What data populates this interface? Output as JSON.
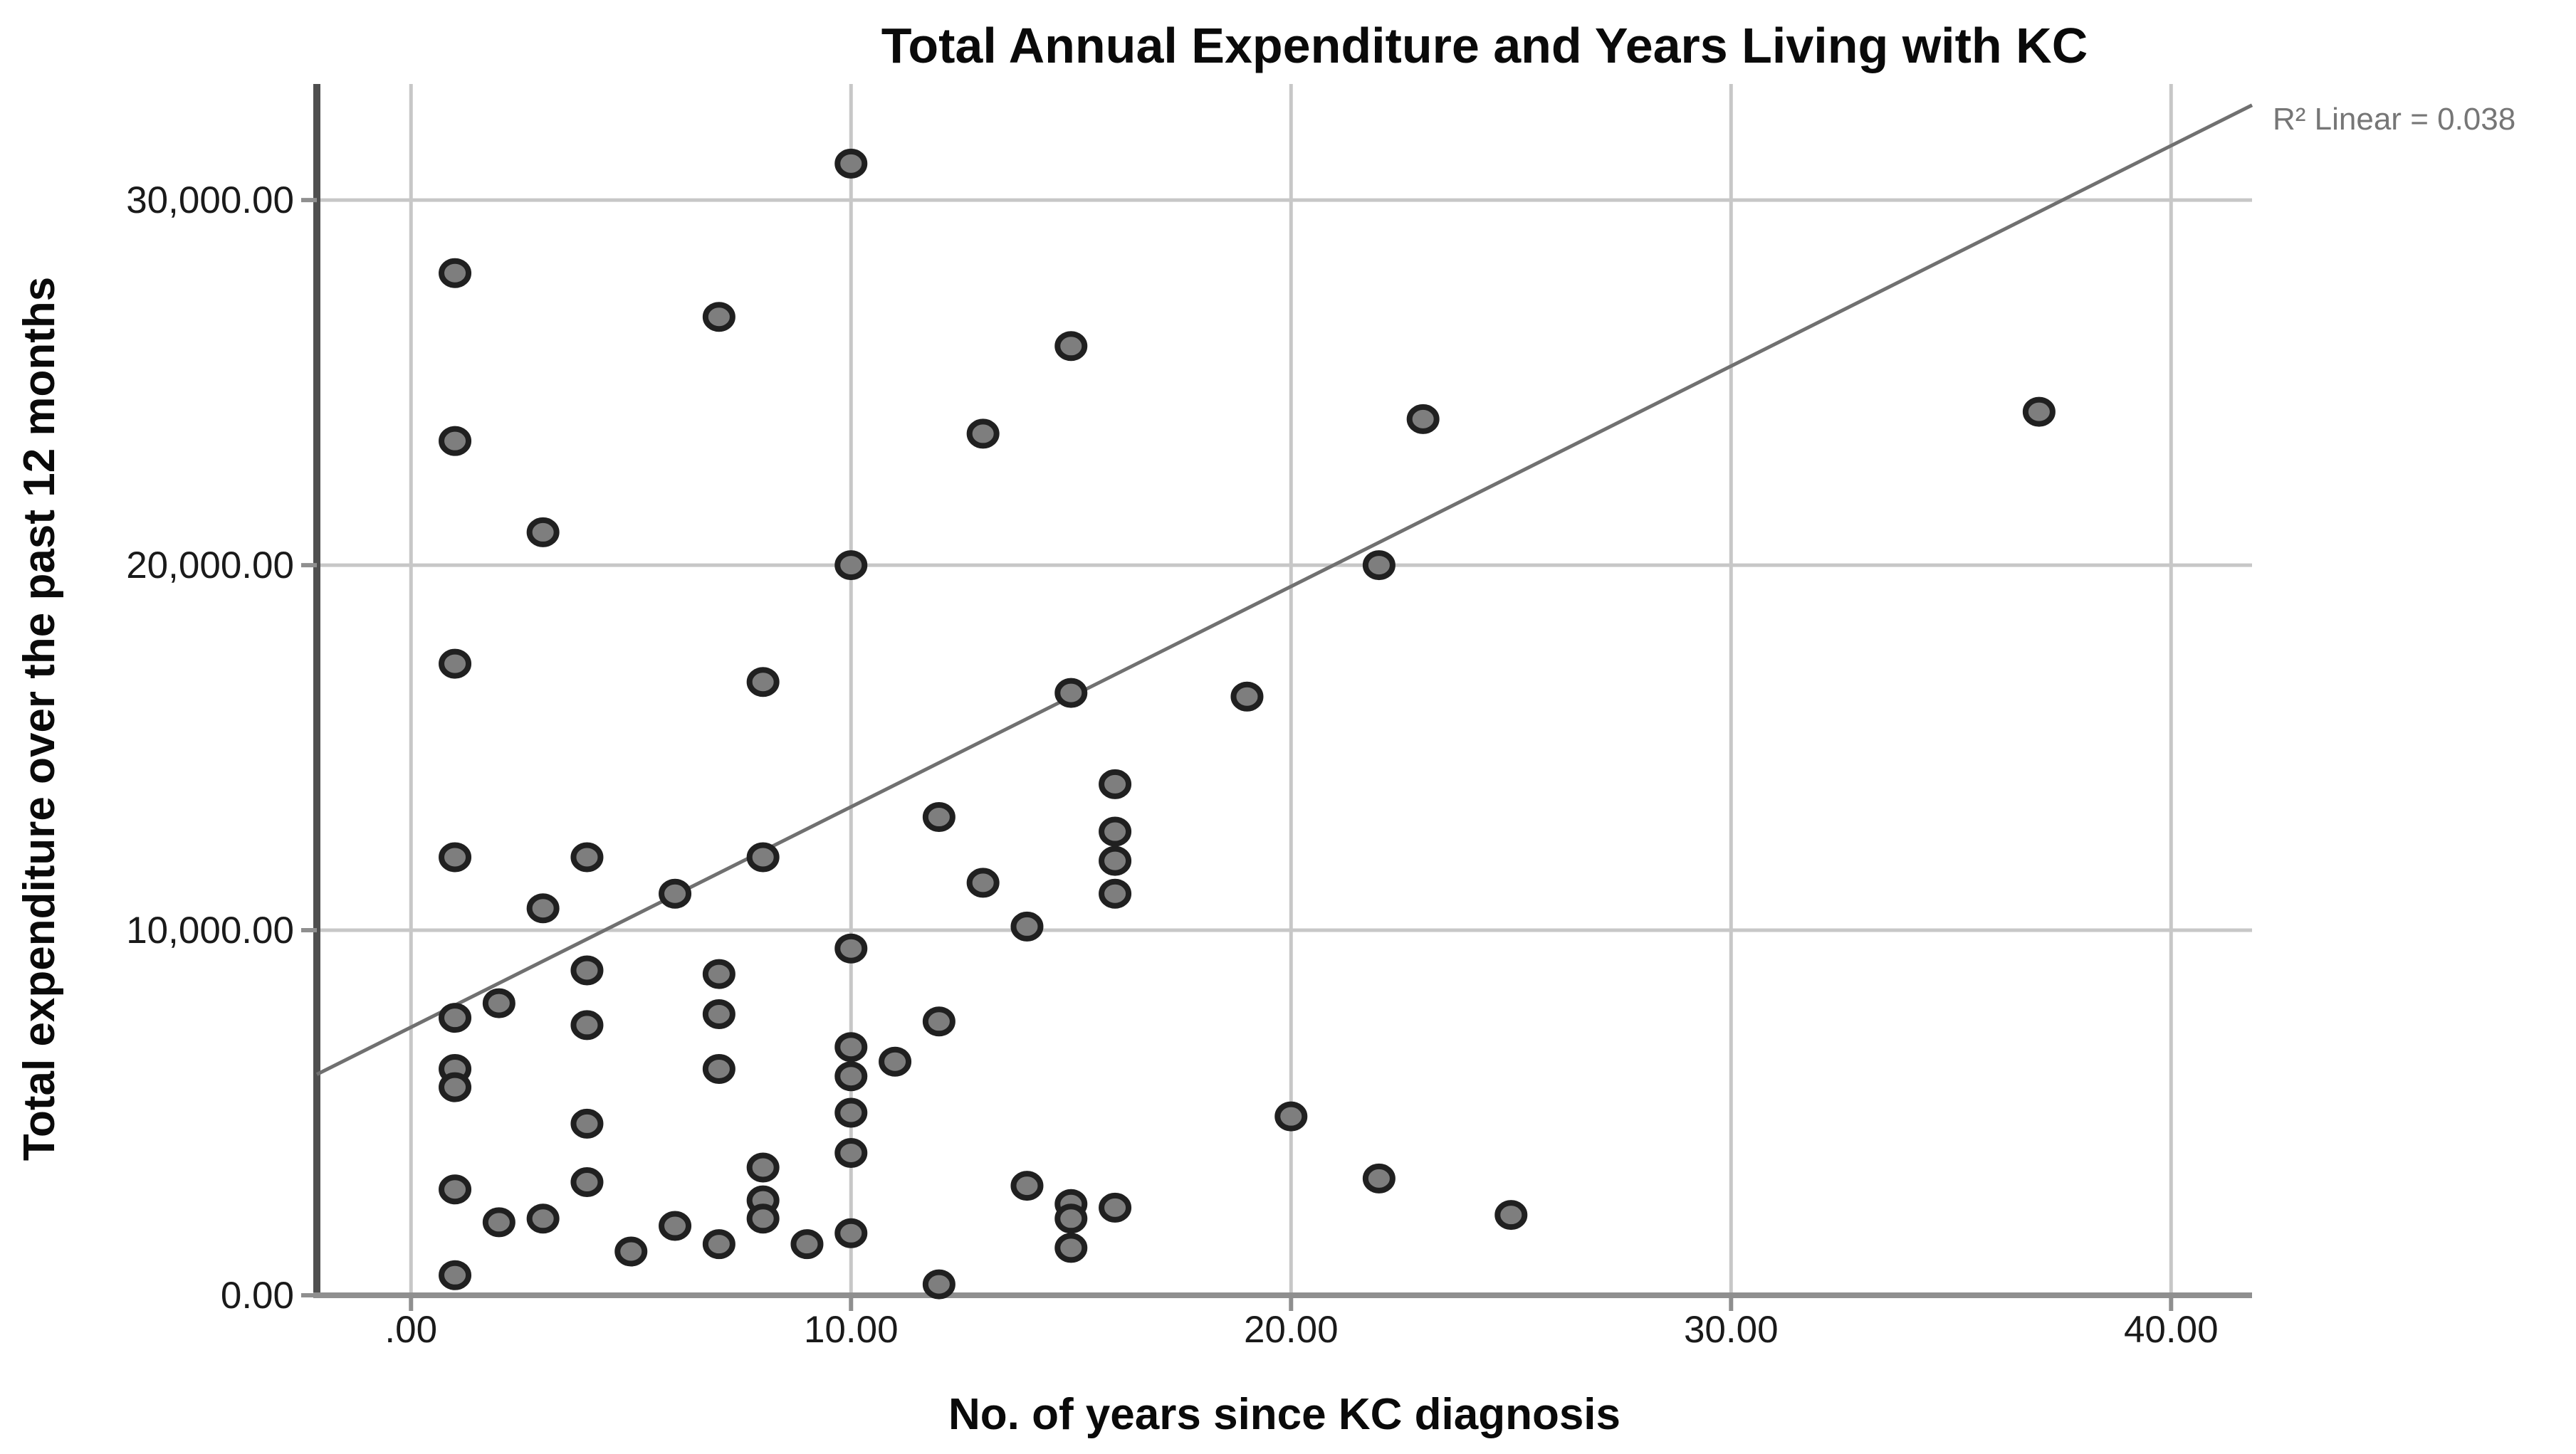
{
  "chart_data": {
    "type": "scatter",
    "title": "Total Annual Expenditure and Years Living with KC",
    "xlabel": "No. of years since KC diagnosis",
    "ylabel": "Total expenditure over the past 12 months",
    "annotation": "R² Linear = 0.038",
    "r2_linear": 0.038,
    "xlim": [
      -2.14,
      41.84
    ],
    "ylim": [
      0,
      33180
    ],
    "grid": true,
    "legend": "none",
    "x_ticks": [
      {
        "value": 0,
        "label": ".00"
      },
      {
        "value": 10,
        "label": "10.00"
      },
      {
        "value": 20,
        "label": "20.00"
      },
      {
        "value": 30,
        "label": "30.00"
      },
      {
        "value": 40,
        "label": "40.00"
      }
    ],
    "y_ticks": [
      {
        "value": 0,
        "label": "0.00"
      },
      {
        "value": 10000,
        "label": "10,000.00"
      },
      {
        "value": 20000,
        "label": "20,000.00"
      },
      {
        "value": 30000,
        "label": "30,000.00"
      }
    ],
    "points": [
      [
        10,
        31000
      ],
      [
        1,
        28000
      ],
      [
        7,
        26800
      ],
      [
        15,
        26000
      ],
      [
        37,
        24200
      ],
      [
        23,
        24000
      ],
      [
        13,
        23600
      ],
      [
        1,
        23400
      ],
      [
        3,
        20900
      ],
      [
        10,
        20000
      ],
      [
        22,
        20000
      ],
      [
        1,
        17300
      ],
      [
        8,
        16800
      ],
      [
        15,
        16500
      ],
      [
        19,
        16400
      ],
      [
        16,
        14000
      ],
      [
        12,
        13100
      ],
      [
        16,
        12700
      ],
      [
        1,
        12000
      ],
      [
        4,
        12000
      ],
      [
        8,
        12000
      ],
      [
        16,
        11900
      ],
      [
        13,
        11300
      ],
      [
        6,
        11000
      ],
      [
        16,
        11000
      ],
      [
        3,
        10600
      ],
      [
        14,
        10100
      ],
      [
        10,
        9500
      ],
      [
        4,
        8900
      ],
      [
        7,
        8800
      ],
      [
        2,
        8000
      ],
      [
        7,
        7700
      ],
      [
        1,
        7600
      ],
      [
        12,
        7500
      ],
      [
        4,
        7400
      ],
      [
        10,
        6800
      ],
      [
        11,
        6400
      ],
      [
        1,
        6200
      ],
      [
        7,
        6200
      ],
      [
        10,
        6000
      ],
      [
        1,
        5700
      ],
      [
        10,
        5000
      ],
      [
        20,
        4900
      ],
      [
        4,
        4700
      ],
      [
        10,
        3900
      ],
      [
        8,
        3500
      ],
      [
        22,
        3200
      ],
      [
        4,
        3100
      ],
      [
        14,
        3000
      ],
      [
        1,
        2900
      ],
      [
        8,
        2600
      ],
      [
        15,
        2500
      ],
      [
        16,
        2400
      ],
      [
        25,
        2200
      ],
      [
        3,
        2100
      ],
      [
        8,
        2100
      ],
      [
        15,
        2100
      ],
      [
        2,
        2000
      ],
      [
        6,
        1900
      ],
      [
        10,
        1700
      ],
      [
        7,
        1400
      ],
      [
        9,
        1400
      ],
      [
        15,
        1300
      ],
      [
        5,
        1200
      ],
      [
        1,
        550
      ],
      [
        12,
        300
      ]
    ],
    "fit_line": {
      "x1": -2.14,
      "y1": 6050,
      "x2": 41.84,
      "y2": 32600
    },
    "colors": {
      "background": "#ffffff",
      "gridline": "#c7c7c7",
      "y_axis_line": "#4f4f4f",
      "x_axis_line": "#8f8f8f",
      "tick_mark": "#8f8f8f",
      "point_fill": "#7e7e7e",
      "point_stroke": "#202020",
      "fit_line": "#707070",
      "text": "#0a0a0a",
      "annotation_text": "#767676"
    }
  }
}
